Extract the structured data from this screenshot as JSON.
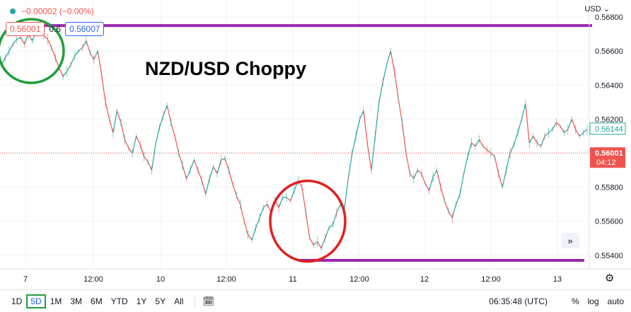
{
  "header": {
    "change": "−0.00002 (−0.00%)",
    "bid": "0.56001",
    "spread": "0.6",
    "ask": "0.56007",
    "currency": "USD",
    "currency_caret": "⌄"
  },
  "colors": {
    "up": "#26a69a",
    "down": "#ef5350",
    "annotation_line": "#9c27b0",
    "green_circle": "#1e9e3a",
    "red_circle": "#e02020",
    "last_price_label": "#ef5350",
    "current_price_label": "#26a69a"
  },
  "toolbar": {
    "timeframes": [
      "1D",
      "5D",
      "1M",
      "3M",
      "6M",
      "YTD",
      "1Y",
      "5Y",
      "All"
    ],
    "active_timeframe": "5D",
    "clock": "06:35:48 (UTC)",
    "percent": "%",
    "log": "log",
    "auto": "auto",
    "scroll_label": "»",
    "gear_glyph": "⚙",
    "calendar_glyph": "🗓"
  },
  "chart_data": {
    "type": "line",
    "title": "NZD/USD Choppy",
    "xlabel": "",
    "ylabel": "",
    "x_tick_labels": [
      "7",
      "12:00",
      "10",
      "12:00",
      "11",
      "12:00",
      "12",
      "12:00",
      "13"
    ],
    "y_ticks": [
      0.554,
      0.556,
      0.558,
      0.56,
      0.562,
      0.564,
      0.566,
      0.568
    ],
    "y_tick_labels": [
      "0.55400",
      "0.55600",
      "0.55800",
      "0.56000",
      "0.56200",
      "0.56400",
      "0.56600",
      "0.56800"
    ],
    "ylim": [
      0.5532,
      0.569
    ],
    "last_price": 0.56001,
    "last_price_label": "0.56001",
    "countdown": "04:12",
    "current_price": 0.56144,
    "current_price_label": "0.56144",
    "grid": true,
    "series": [
      {
        "values": [
          0.5652,
          0.5656,
          0.566,
          0.5664,
          0.5667,
          0.5668,
          0.5664,
          0.567,
          0.5666,
          0.5671,
          0.5673,
          0.5669,
          0.5667,
          0.5662,
          0.5656,
          0.565,
          0.5645,
          0.5648,
          0.5652,
          0.5657,
          0.566,
          0.5662,
          0.5666,
          0.5659,
          0.5655,
          0.566,
          0.5646,
          0.563,
          0.562,
          0.5612,
          0.5625,
          0.5618,
          0.5608,
          0.5603,
          0.56,
          0.561,
          0.5605,
          0.5598,
          0.5595,
          0.559,
          0.5605,
          0.5615,
          0.5622,
          0.5628,
          0.5618,
          0.561,
          0.56,
          0.5593,
          0.5585,
          0.559,
          0.5596,
          0.559,
          0.5584,
          0.5576,
          0.5585,
          0.5592,
          0.5588,
          0.5596,
          0.5597,
          0.559,
          0.5582,
          0.5575,
          0.557,
          0.556,
          0.5552,
          0.5549,
          0.5556,
          0.5562,
          0.5568,
          0.557,
          0.5565,
          0.5572,
          0.5568,
          0.5574,
          0.5574,
          0.5572,
          0.5578,
          0.5584,
          0.558,
          0.5565,
          0.555,
          0.5546,
          0.5548,
          0.5544,
          0.555,
          0.5556,
          0.5558,
          0.5565,
          0.557,
          0.5567,
          0.5585,
          0.56,
          0.561,
          0.562,
          0.5625,
          0.5605,
          0.559,
          0.561,
          0.563,
          0.5642,
          0.5652,
          0.566,
          0.5648,
          0.5632,
          0.5618,
          0.56,
          0.5588,
          0.5585,
          0.559,
          0.5588,
          0.5582,
          0.5578,
          0.5586,
          0.559,
          0.558,
          0.5572,
          0.5566,
          0.5562,
          0.557,
          0.5576,
          0.5588,
          0.5598,
          0.5606,
          0.5604,
          0.5608,
          0.5604,
          0.5602,
          0.56,
          0.5598,
          0.5588,
          0.558,
          0.559,
          0.56,
          0.5605,
          0.5612,
          0.562,
          0.5629,
          0.5606,
          0.561,
          0.5606,
          0.5604,
          0.561,
          0.5612,
          0.5614,
          0.5618,
          0.5616,
          0.5612,
          0.5614,
          0.562,
          0.5614,
          0.561,
          0.5612,
          0.5614
        ]
      }
    ],
    "annotations": {
      "top_line_level": 0.5675,
      "bottom_line_level": 0.5537,
      "green_circle_center": [
        4,
        0.566
      ],
      "red_circle_center": [
        84,
        0.556
      ]
    }
  }
}
